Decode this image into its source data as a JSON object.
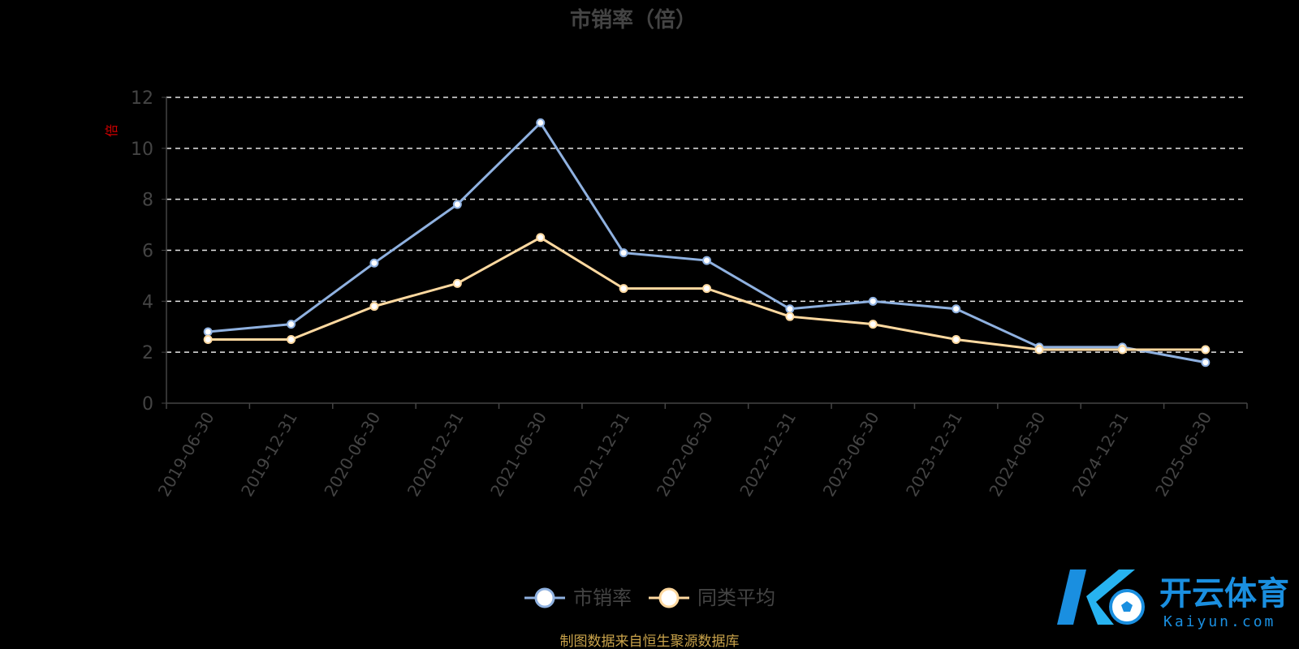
{
  "chart_data": {
    "type": "line",
    "title": "市销率（倍）",
    "y_unit_label": "倍",
    "ylim": [
      0,
      12
    ],
    "yticks": [
      0,
      2,
      4,
      6,
      8,
      10,
      12
    ],
    "grid": true,
    "legend_position": "bottom-center",
    "categories": [
      "2019-06-30",
      "2019-12-31",
      "2020-06-30",
      "2020-12-31",
      "2021-06-30",
      "2021-12-31",
      "2022-06-30",
      "2022-12-31",
      "2023-06-30",
      "2023-12-31",
      "2024-06-30",
      "2024-12-31",
      "2025-06-30"
    ],
    "series": [
      {
        "name": "市销率",
        "color": "#8fb1e0",
        "values": [
          2.8,
          3.1,
          5.5,
          7.8,
          11.0,
          5.9,
          5.6,
          3.7,
          4.0,
          3.7,
          2.2,
          2.2,
          1.6
        ]
      },
      {
        "name": "同类平均",
        "color": "#ffd9a0",
        "values": [
          2.5,
          2.5,
          3.8,
          4.7,
          6.5,
          4.5,
          4.5,
          3.4,
          3.1,
          2.5,
          2.1,
          2.1,
          2.1
        ]
      }
    ],
    "source_note": "制图数据来自恒生聚源数据库"
  },
  "watermark": {
    "cn": "开云体育",
    "en": "Kaiyun.com",
    "color": "#1a8fe0"
  }
}
